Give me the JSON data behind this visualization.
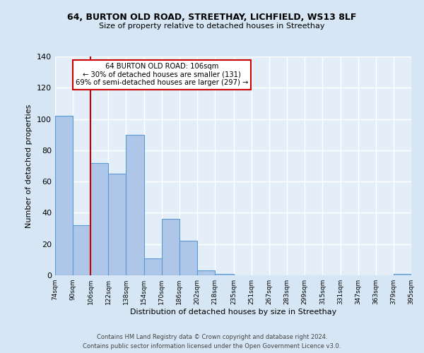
{
  "title": "64, BURTON OLD ROAD, STREETHAY, LICHFIELD, WS13 8LF",
  "subtitle": "Size of property relative to detached houses in Streethay",
  "xlabel": "Distribution of detached houses by size in Streethay",
  "ylabel": "Number of detached properties",
  "bin_edges": [
    74,
    90,
    106,
    122,
    138,
    154,
    170,
    186,
    202,
    218,
    235,
    251,
    267,
    283,
    299,
    315,
    331,
    347,
    363,
    379,
    395
  ],
  "bar_heights": [
    102,
    32,
    72,
    65,
    90,
    11,
    36,
    22,
    3,
    1,
    0,
    0,
    0,
    0,
    0,
    0,
    0,
    0,
    0,
    1
  ],
  "bar_color": "#aec6e8",
  "bar_edge_color": "#5b9bd5",
  "bg_color": "#d6e6f5",
  "plot_bg_color": "#e4eef8",
  "grid_color": "#ffffff",
  "vline_x": 106,
  "vline_color": "#cc0000",
  "annotation_text": "64 BURTON OLD ROAD: 106sqm\n← 30% of detached houses are smaller (131)\n69% of semi-detached houses are larger (297) →",
  "annotation_box_color": "#ffffff",
  "annotation_border_color": "#cc0000",
  "ylim": [
    0,
    140
  ],
  "yticks": [
    0,
    20,
    40,
    60,
    80,
    100,
    120,
    140
  ],
  "footer_line1": "Contains HM Land Registry data © Crown copyright and database right 2024.",
  "footer_line2": "Contains public sector information licensed under the Open Government Licence v3.0."
}
